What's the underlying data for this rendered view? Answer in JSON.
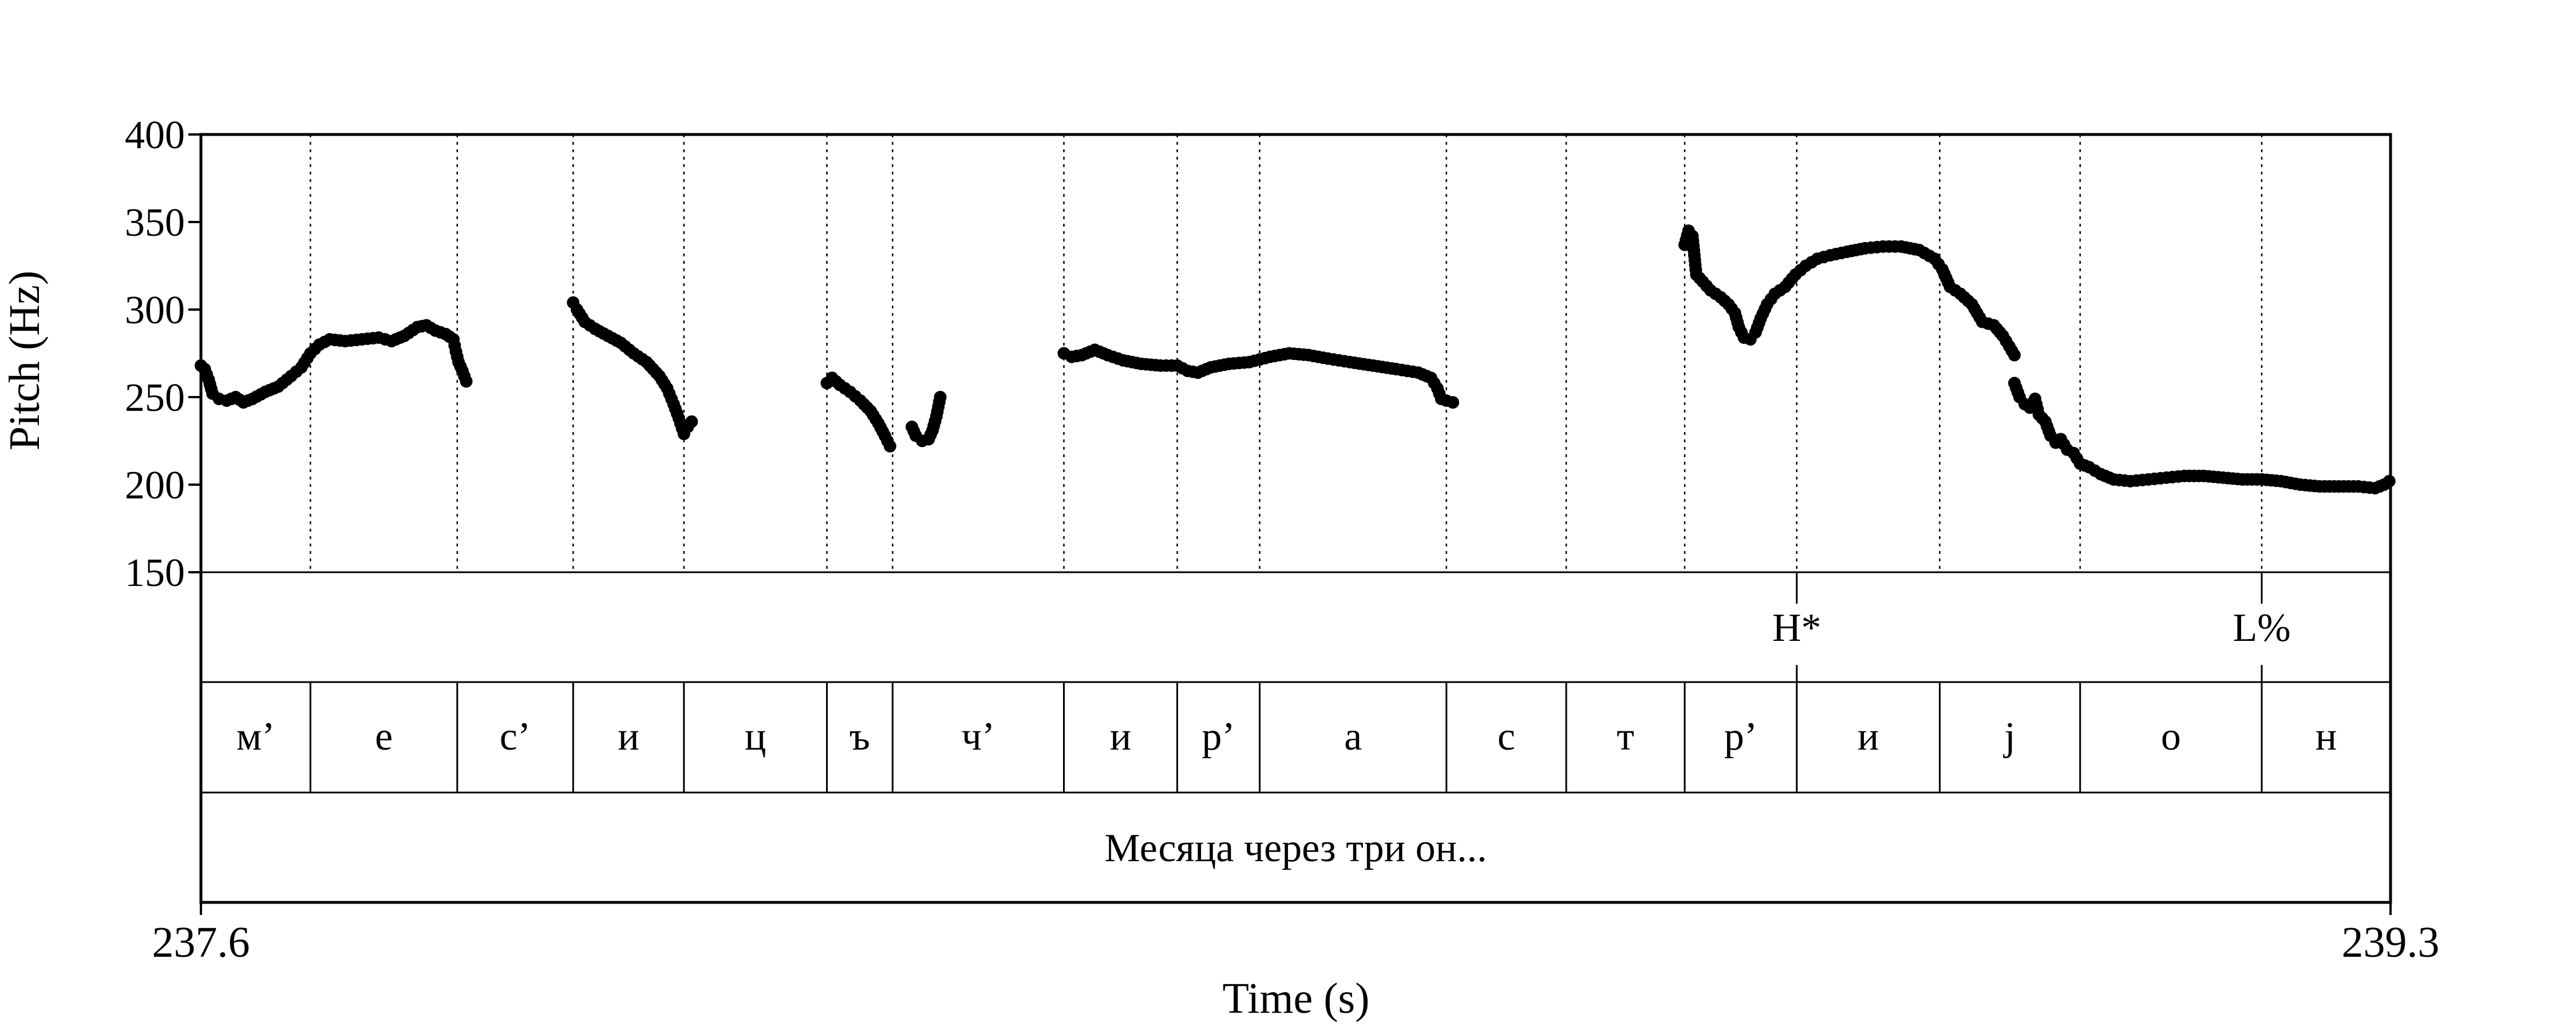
{
  "chart_data": {
    "type": "scatter",
    "xlabel": "Time (s)",
    "ylabel": "Pitch (Hz)",
    "xlim": [
      237.6,
      239.3
    ],
    "ylim": [
      150,
      400
    ],
    "x_tick_labels": [
      "237.6",
      "239.3"
    ],
    "y_ticks": [
      150,
      200,
      250,
      300,
      350,
      400
    ],
    "point_color": "#000000",
    "boundary_times": [
      237.685,
      237.799,
      237.889,
      237.975,
      238.086,
      238.137,
      238.27,
      238.358,
      238.422,
      238.567,
      238.66,
      238.752,
      238.839,
      238.95,
      239.059,
      239.2
    ],
    "tone_tier": [
      {
        "time": 238.839,
        "label": "H*"
      },
      {
        "time": 239.2,
        "label": "L%"
      }
    ],
    "segments": [
      {
        "label": "м’",
        "start": 237.6,
        "end": 237.685
      },
      {
        "label": "е",
        "start": 237.685,
        "end": 237.799
      },
      {
        "label": "с’",
        "start": 237.799,
        "end": 237.889
      },
      {
        "label": "и",
        "start": 237.889,
        "end": 237.975
      },
      {
        "label": "ц",
        "start": 237.975,
        "end": 238.086
      },
      {
        "label": "ъ",
        "start": 238.086,
        "end": 238.137
      },
      {
        "label": "ч’",
        "start": 238.137,
        "end": 238.27
      },
      {
        "label": "и",
        "start": 238.27,
        "end": 238.358
      },
      {
        "label": "р’",
        "start": 238.358,
        "end": 238.422
      },
      {
        "label": "а",
        "start": 238.422,
        "end": 238.567
      },
      {
        "label": "с",
        "start": 238.567,
        "end": 238.66
      },
      {
        "label": "т",
        "start": 238.66,
        "end": 238.752
      },
      {
        "label": "р’",
        "start": 238.752,
        "end": 238.839
      },
      {
        "label": "и",
        "start": 238.839,
        "end": 238.95
      },
      {
        "label": "j",
        "start": 238.95,
        "end": 239.059
      },
      {
        "label": "о",
        "start": 239.059,
        "end": 239.2
      },
      {
        "label": "н",
        "start": 239.2,
        "end": 239.3
      }
    ],
    "words": [
      {
        "label": "Месяца через три он...",
        "start": 237.6,
        "end": 239.3
      }
    ],
    "contour": [
      [
        [
          237.6,
          268
        ],
        [
          237.603,
          266
        ],
        [
          237.606,
          260
        ],
        [
          237.609,
          252
        ],
        [
          237.614,
          249
        ],
        [
          237.62,
          248
        ],
        [
          237.627,
          250
        ],
        [
          237.633,
          247
        ],
        [
          237.64,
          249
        ],
        [
          237.65,
          253
        ],
        [
          237.66,
          256
        ],
        [
          237.67,
          262
        ],
        [
          237.678,
          267
        ],
        [
          237.685,
          275
        ],
        [
          237.692,
          280
        ],
        [
          237.7,
          283
        ],
        [
          237.712,
          282
        ],
        [
          237.725,
          283
        ],
        [
          237.738,
          284
        ],
        [
          237.748,
          282
        ],
        [
          237.758,
          285
        ],
        [
          237.768,
          290
        ],
        [
          237.775,
          291
        ],
        [
          237.782,
          288
        ],
        [
          237.79,
          286
        ],
        [
          237.796,
          283
        ],
        [
          237.798,
          276
        ],
        [
          237.8,
          270
        ],
        [
          237.803,
          265
        ],
        [
          237.806,
          259
        ]
      ],
      [
        [
          237.889,
          304
        ],
        [
          237.892,
          300
        ],
        [
          237.898,
          293
        ],
        [
          237.906,
          289
        ],
        [
          237.916,
          285
        ],
        [
          237.926,
          281
        ],
        [
          237.936,
          275
        ],
        [
          237.946,
          270
        ],
        [
          237.956,
          262
        ],
        [
          237.962,
          255
        ],
        [
          237.967,
          246
        ],
        [
          237.971,
          238
        ],
        [
          237.975,
          229
        ],
        [
          237.978,
          233
        ],
        [
          237.981,
          236
        ]
      ],
      [
        [
          238.086,
          258
        ],
        [
          238.09,
          261
        ],
        [
          238.096,
          257
        ],
        [
          238.104,
          253
        ],
        [
          238.112,
          248
        ],
        [
          238.12,
          242
        ],
        [
          238.126,
          235
        ],
        [
          238.131,
          228
        ],
        [
          238.135,
          222
        ]
      ],
      [
        [
          238.152,
          233
        ],
        [
          238.155,
          228
        ],
        [
          238.16,
          225
        ],
        [
          238.165,
          226
        ],
        [
          238.168,
          231
        ],
        [
          238.171,
          239
        ],
        [
          238.174,
          250
        ]
      ],
      [
        [
          238.27,
          275
        ],
        [
          238.276,
          273
        ],
        [
          238.284,
          274
        ],
        [
          238.294,
          277
        ],
        [
          238.304,
          274
        ],
        [
          238.316,
          271
        ],
        [
          238.33,
          269
        ],
        [
          238.345,
          268
        ],
        [
          238.358,
          268
        ],
        [
          238.366,
          265
        ],
        [
          238.374,
          264
        ],
        [
          238.384,
          267
        ],
        [
          238.398,
          269
        ],
        [
          238.414,
          270
        ],
        [
          238.43,
          273
        ],
        [
          238.445,
          275
        ],
        [
          238.46,
          274
        ],
        [
          238.475,
          272
        ],
        [
          238.492,
          270
        ],
        [
          238.51,
          268
        ],
        [
          238.528,
          266
        ],
        [
          238.545,
          264
        ],
        [
          238.555,
          261
        ],
        [
          238.56,
          255
        ],
        [
          238.563,
          249
        ],
        [
          238.567,
          248
        ],
        [
          238.572,
          247
        ]
      ],
      [
        [
          238.752,
          337
        ],
        [
          238.755,
          345
        ],
        [
          238.758,
          342
        ],
        [
          238.761,
          320
        ],
        [
          238.766,
          316
        ],
        [
          238.772,
          311
        ],
        [
          238.78,
          307
        ],
        [
          238.786,
          303
        ],
        [
          238.791,
          298
        ],
        [
          238.794,
          290
        ],
        [
          238.798,
          284
        ],
        [
          238.803,
          283
        ],
        [
          238.807,
          287
        ],
        [
          238.811,
          295
        ],
        [
          238.816,
          303
        ],
        [
          238.822,
          309
        ],
        [
          238.83,
          313
        ],
        [
          238.838,
          320
        ],
        [
          238.846,
          325
        ],
        [
          238.855,
          329
        ],
        [
          238.865,
          331
        ],
        [
          238.878,
          333
        ],
        [
          238.892,
          335
        ],
        [
          238.906,
          336
        ],
        [
          238.92,
          336
        ],
        [
          238.934,
          334
        ],
        [
          238.946,
          329
        ],
        [
          238.952,
          323
        ],
        [
          238.958,
          313
        ],
        [
          238.966,
          309
        ],
        [
          238.975,
          303
        ],
        [
          238.983,
          293
        ],
        [
          238.992,
          291
        ],
        [
          238.999,
          285
        ],
        [
          239.004,
          279
        ],
        [
          239.008,
          274
        ]
      ],
      [
        [
          239.008,
          258
        ],
        [
          239.012,
          250
        ],
        [
          239.016,
          246
        ],
        [
          239.02,
          244
        ],
        [
          239.024,
          249
        ],
        [
          239.027,
          240
        ],
        [
          239.032,
          236
        ],
        [
          239.036,
          228
        ],
        [
          239.04,
          224
        ],
        [
          239.044,
          226
        ],
        [
          239.049,
          220
        ],
        [
          239.054,
          218
        ],
        [
          239.059,
          212
        ],
        [
          239.066,
          210
        ],
        [
          239.075,
          206
        ],
        [
          239.085,
          203
        ],
        [
          239.098,
          202
        ],
        [
          239.112,
          203
        ],
        [
          239.126,
          204
        ],
        [
          239.14,
          205
        ],
        [
          239.155,
          205
        ],
        [
          239.17,
          204
        ],
        [
          239.185,
          203
        ],
        [
          239.2,
          203
        ],
        [
          239.215,
          202
        ],
        [
          239.23,
          200
        ],
        [
          239.245,
          199
        ],
        [
          239.26,
          199
        ],
        [
          239.275,
          199
        ],
        [
          239.288,
          198
        ],
        [
          239.295,
          200
        ],
        [
          239.299,
          202
        ]
      ]
    ]
  }
}
